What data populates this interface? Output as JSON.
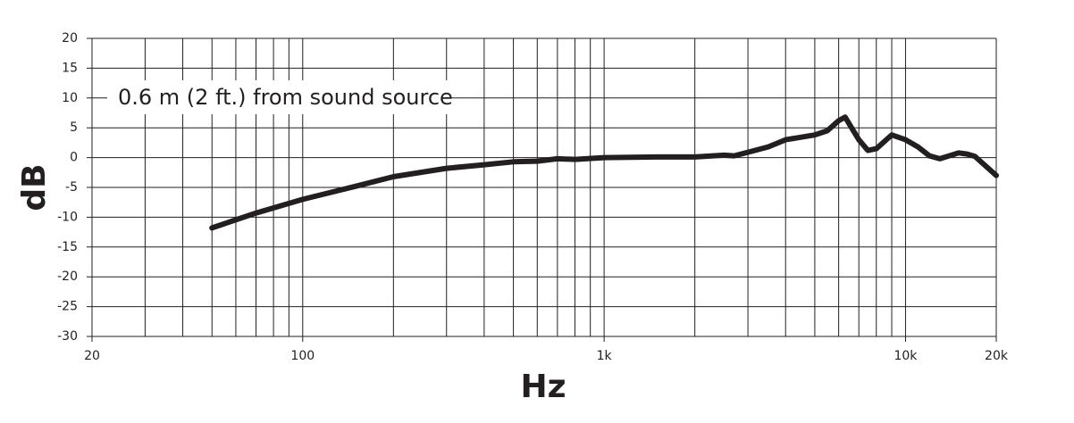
{
  "chart_data": {
    "type": "line",
    "annotation": "0.6 m (2 ft.) from sound source",
    "xlabel": "Hz",
    "ylabel": "dB",
    "xscale": "log",
    "xlim": [
      20,
      20000
    ],
    "ylim": [
      -30,
      20
    ],
    "xticks": [
      20,
      100,
      {
        "value": 1000,
        "label": "1k"
      },
      {
        "value": 10000,
        "label": "10k"
      },
      {
        "value": 20000,
        "label": "20k"
      }
    ],
    "xgrid": [
      20,
      30,
      40,
      50,
      60,
      70,
      80,
      90,
      100,
      200,
      300,
      400,
      500,
      600,
      700,
      800,
      900,
      1000,
      2000,
      3000,
      4000,
      5000,
      6000,
      7000,
      8000,
      9000,
      10000,
      20000
    ],
    "yticks": [
      20,
      15,
      10,
      5,
      0,
      -5,
      -10,
      -15,
      -20,
      -25,
      -30
    ],
    "grid": true,
    "series": [
      {
        "color": "#231f20",
        "x": [
          50,
          70,
          100,
          150,
          200,
          300,
          400,
          500,
          600,
          700,
          800,
          1000,
          1500,
          2000,
          2500,
          2700,
          3000,
          3500,
          4000,
          5000,
          5500,
          6000,
          6300,
          7000,
          7500,
          8000,
          9000,
          10000,
          11000,
          12000,
          13000,
          15000,
          16000,
          17000,
          20000
        ],
        "values": [
          -11.8,
          -9.3,
          -7,
          -4.8,
          -3.2,
          -1.8,
          -1.2,
          -0.7,
          -0.6,
          -0.2,
          -0.3,
          0,
          0.1,
          0.1,
          0.4,
          0.3,
          0.9,
          1.8,
          3,
          3.8,
          4.5,
          6.2,
          6.8,
          3,
          1.2,
          1.5,
          3.8,
          3,
          1.8,
          0.3,
          -0.2,
          0.8,
          0.6,
          0.2,
          -3
        ]
      }
    ]
  }
}
